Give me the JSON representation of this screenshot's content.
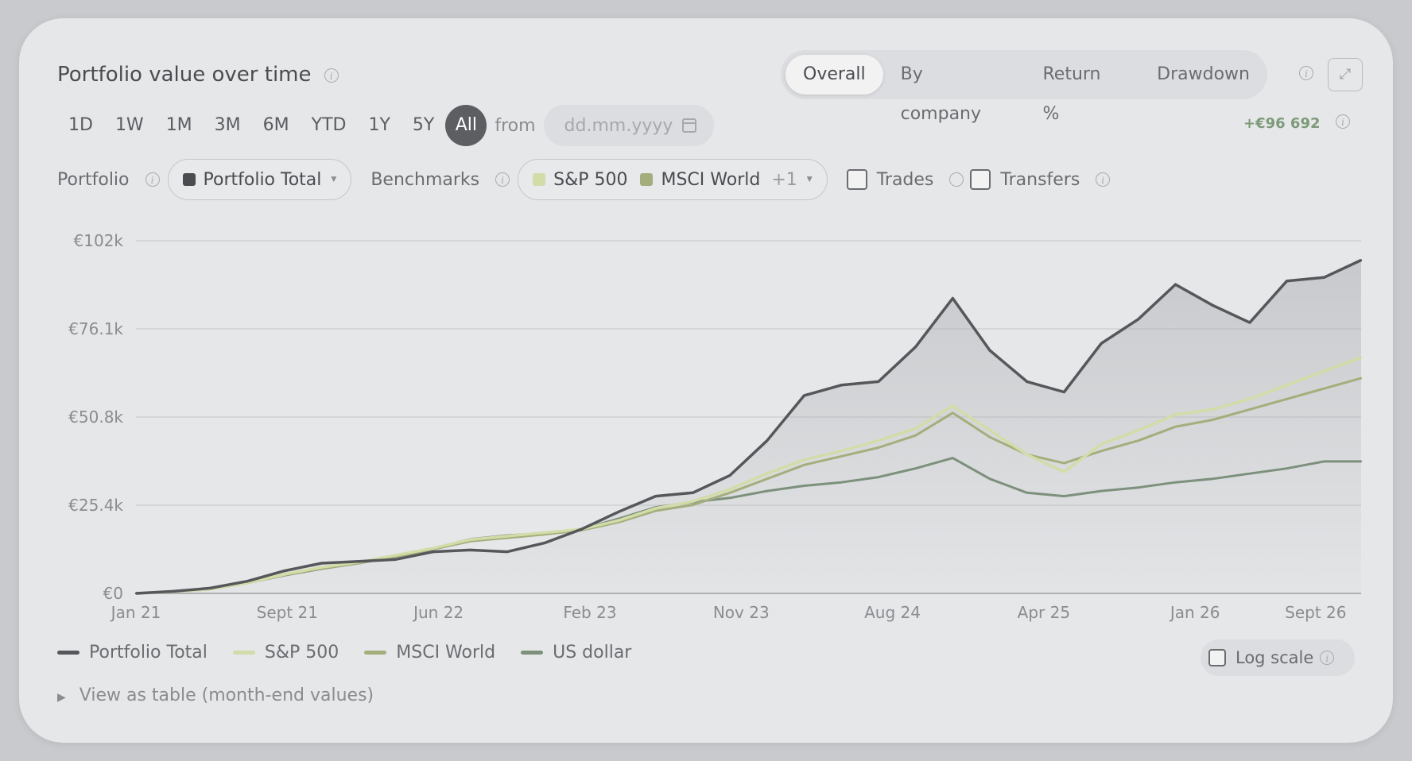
{
  "header": {
    "title": "Portfolio value over time",
    "tabs": [
      {
        "label": "Overall",
        "active": true
      },
      {
        "label": "By company",
        "active": false
      },
      {
        "label": "Return %",
        "active": false
      },
      {
        "label": "Drawdown",
        "active": false
      }
    ]
  },
  "ranges": [
    {
      "label": "1D",
      "active": false
    },
    {
      "label": "1W",
      "active": false
    },
    {
      "label": "1M",
      "active": false
    },
    {
      "label": "3M",
      "active": false
    },
    {
      "label": "6M",
      "active": false
    },
    {
      "label": "YTD",
      "active": false
    },
    {
      "label": "1Y",
      "active": false
    },
    {
      "label": "5Y",
      "active": false
    },
    {
      "label": "All",
      "active": true
    }
  ],
  "from_label": "from",
  "date_placeholder": "dd.mm.yyyy",
  "gain": "+€96 692",
  "filters": {
    "portfolio_label": "Portfolio",
    "portfolio_value": "Portfolio Total",
    "benchmarks_label": "Benchmarks",
    "benchmark_chips": [
      {
        "label": "S&P 500",
        "color": "#d2dca8"
      },
      {
        "label": "MSCI World",
        "color": "#a4ae7c"
      }
    ],
    "benchmark_more": "+1",
    "trades_label": "Trades",
    "transfers_label": "Transfers"
  },
  "colors": {
    "portfolio": "#55575b",
    "sp500": "#d2dca8",
    "msci": "#a4ae7c",
    "usd": "#7c907c"
  },
  "chart_data": {
    "type": "line",
    "x_ticks": [
      "Jan 21",
      "Sept 21",
      "Jun 22",
      "Feb 23",
      "Nov 23",
      "Aug 24",
      "Apr 25",
      "Jan 26",
      "Sept 26"
    ],
    "y_ticks": [
      "€102k",
      "€76.1k",
      "€50.8k",
      "€25.4k",
      "€0"
    ],
    "ylim": [
      0,
      101600
    ],
    "grid": true,
    "x": [
      "Jan 21",
      "Mar 21",
      "May 21",
      "Jul 21",
      "Sept 21",
      "Nov 21",
      "Jan 22",
      "Mar 22",
      "Jun 22",
      "Aug 22",
      "Oct 22",
      "Dec 22",
      "Feb 23",
      "Apr 23",
      "Jun 23",
      "Aug 23",
      "Nov 23",
      "Jan 24",
      "Mar 24",
      "May 24",
      "Aug 24",
      "Oct 24",
      "Nov 24",
      "Dec 24",
      "Feb 25",
      "Apr 25",
      "Jun 25",
      "Aug 25",
      "Oct 25",
      "Jan 26",
      "Mar 26",
      "May 26",
      "Jul 26",
      "Sept 26"
    ],
    "series": [
      {
        "name": "Portfolio Total",
        "values": [
          0,
          600,
          1500,
          3500,
          6500,
          8700,
          9200,
          9800,
          12000,
          12500,
          12000,
          14500,
          18500,
          23500,
          28000,
          29000,
          34000,
          44000,
          57000,
          60000,
          61000,
          71000,
          85000,
          70000,
          61000,
          58000,
          72000,
          79000,
          89000,
          83000,
          78000,
          90000,
          91000,
          96000
        ]
      },
      {
        "name": "S&P 500",
        "values": [
          0,
          500,
          1200,
          3000,
          5500,
          7500,
          9000,
          11000,
          13000,
          15500,
          16500,
          17500,
          18500,
          21000,
          24500,
          26500,
          30000,
          34500,
          38500,
          41000,
          44000,
          47500,
          54000,
          47000,
          40000,
          35000,
          43000,
          47000,
          51500,
          53000,
          56000,
          60000,
          64000,
          68000
        ]
      },
      {
        "name": "MSCI World",
        "values": [
          0,
          500,
          1200,
          3000,
          5300,
          7200,
          8700,
          10600,
          12700,
          15000,
          16000,
          17000,
          18200,
          20500,
          23800,
          25500,
          29000,
          33000,
          37000,
          39500,
          42000,
          45500,
          52000,
          45000,
          40000,
          37500,
          41000,
          44000,
          48000,
          50000,
          53000,
          56000,
          59000,
          62000
        ]
      },
      {
        "name": "US dollar",
        "values": [
          0,
          500,
          1200,
          3000,
          5200,
          7100,
          8700,
          10600,
          12900,
          15600,
          16700,
          17300,
          18500,
          21500,
          24800,
          26300,
          27500,
          29500,
          31000,
          32000,
          33500,
          36000,
          39000,
          33000,
          29000,
          28000,
          29500,
          30500,
          32000,
          33000,
          34500,
          36000,
          38000,
          38000
        ]
      }
    ]
  },
  "legend": [
    {
      "label": "Portfolio Total",
      "color": "#55575b"
    },
    {
      "label": "S&P 500",
      "color": "#d2dca8"
    },
    {
      "label": "MSCI World",
      "color": "#a4ae7c"
    },
    {
      "label": "US dollar",
      "color": "#7c907c"
    }
  ],
  "log_scale_label": "Log scale",
  "view_table_label": "View as table (month-end values)"
}
